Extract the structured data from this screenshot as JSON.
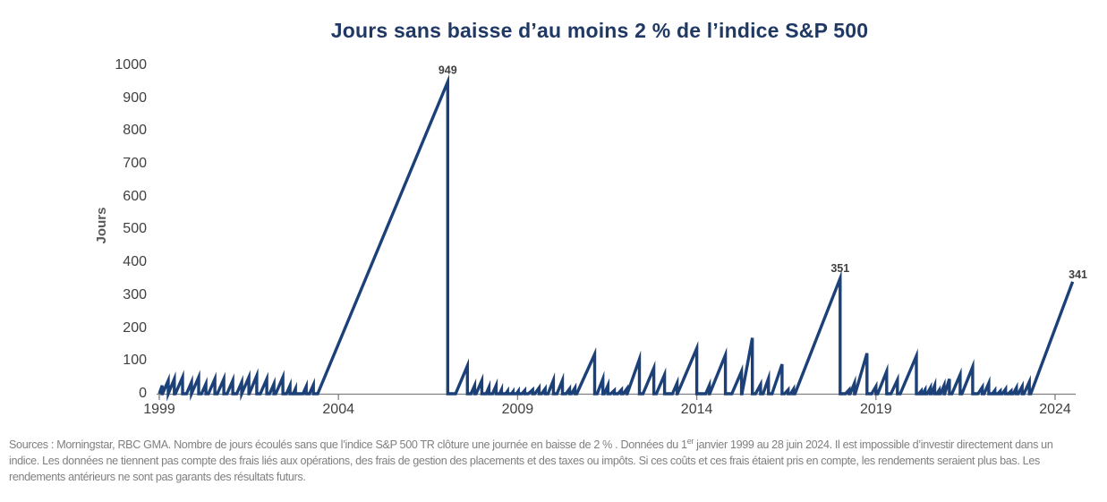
{
  "chart": {
    "title": "Jours sans baisse d’au moins 2 % de l’indice S&P 500"
  },
  "chart_data": {
    "type": "line",
    "title": "Jours sans baisse d’au moins 2 % de l’indice S&P 500",
    "xlabel": "",
    "ylabel": "Jours",
    "ylim": [
      0,
      1000
    ],
    "yticks": [
      0,
      100,
      200,
      300,
      400,
      500,
      600,
      700,
      800,
      900,
      1000
    ],
    "xticks": [
      1999,
      2004,
      2009,
      2014,
      2019,
      2024
    ],
    "x_range": [
      1999,
      2024.6
    ],
    "grid": false,
    "legend": "none",
    "line_color": "#1B4178",
    "axis_color": "#808080",
    "tick_label_color": "#404040",
    "annotation_color": "#404040",
    "title_color": "#1F3864",
    "teeth_format": [
      "streak_start_year",
      "streak_end_year",
      "days_without_2pct_decline_at_peak"
    ],
    "teeth": [
      [
        1999.0,
        1999.08,
        25
      ],
      [
        1999.09,
        1999.25,
        40
      ],
      [
        1999.25,
        1999.42,
        45
      ],
      [
        1999.45,
        1999.65,
        50
      ],
      [
        1999.76,
        1999.9,
        35
      ],
      [
        1999.9,
        2000.1,
        50
      ],
      [
        2000.18,
        2000.3,
        30
      ],
      [
        2000.37,
        2000.55,
        45
      ],
      [
        2000.62,
        2000.8,
        45
      ],
      [
        2000.89,
        2001.05,
        40
      ],
      [
        2001.16,
        2001.3,
        35
      ],
      [
        2001.3,
        2001.5,
        50
      ],
      [
        2001.51,
        2001.72,
        55
      ],
      [
        2001.82,
        2002.0,
        45
      ],
      [
        2002.08,
        2002.2,
        30
      ],
      [
        2002.25,
        2002.45,
        50
      ],
      [
        2002.55,
        2002.65,
        25
      ],
      [
        2002.74,
        2002.8,
        15
      ],
      [
        2003.01,
        2003.1,
        22
      ],
      [
        2003.19,
        2003.3,
        27
      ],
      [
        2003.42,
        2007.05,
        949
      ],
      [
        2007.27,
        2007.6,
        85
      ],
      [
        2007.7,
        2007.8,
        25
      ],
      [
        2007.84,
        2008.0,
        40
      ],
      [
        2008.12,
        2008.2,
        20
      ],
      [
        2008.3,
        2008.4,
        25
      ],
      [
        2008.5,
        2008.55,
        12
      ],
      [
        2008.67,
        2008.72,
        8
      ],
      [
        2008.83,
        2008.87,
        6
      ],
      [
        2008.97,
        2009.02,
        8
      ],
      [
        2009.12,
        2009.2,
        10
      ],
      [
        2009.3,
        2009.42,
        12
      ],
      [
        2009.48,
        2009.6,
        18
      ],
      [
        2009.67,
        2009.77,
        15
      ],
      [
        2009.85,
        2010.0,
        41
      ],
      [
        2010.1,
        2010.25,
        41
      ],
      [
        2010.35,
        2010.45,
        15
      ],
      [
        2010.5,
        2010.6,
        18
      ],
      [
        2010.65,
        2011.15,
        120
      ],
      [
        2011.22,
        2011.38,
        45
      ],
      [
        2011.42,
        2011.52,
        25
      ],
      [
        2011.6,
        2011.7,
        10
      ],
      [
        2011.8,
        2011.9,
        12
      ],
      [
        2011.95,
        2012.05,
        15
      ],
      [
        2012.06,
        2012.4,
        105
      ],
      [
        2012.5,
        2012.8,
        78
      ],
      [
        2012.87,
        2013.1,
        58
      ],
      [
        2013.32,
        2013.45,
        32
      ],
      [
        2013.46,
        2014.0,
        138
      ],
      [
        2014.25,
        2014.35,
        25
      ],
      [
        2014.36,
        2014.8,
        118
      ],
      [
        2014.98,
        2015.25,
        68
      ],
      [
        2015.26,
        2015.55,
        170
      ],
      [
        2015.64,
        2015.78,
        28
      ],
      [
        2015.85,
        2016.0,
        46
      ],
      [
        2016.1,
        2016.38,
        90
      ],
      [
        2016.45,
        2016.55,
        12
      ],
      [
        2016.62,
        2016.7,
        14
      ],
      [
        2016.74,
        2018.0,
        351
      ],
      [
        2018.15,
        2018.25,
        12
      ],
      [
        2018.28,
        2018.4,
        32
      ],
      [
        2018.42,
        2018.75,
        123
      ],
      [
        2018.88,
        2019.0,
        22
      ],
      [
        2019.05,
        2019.3,
        68
      ],
      [
        2019.42,
        2019.6,
        42
      ],
      [
        2019.68,
        2020.13,
        115
      ],
      [
        2020.2,
        2020.26,
        8
      ],
      [
        2020.3,
        2020.37,
        12
      ],
      [
        2020.43,
        2020.52,
        18
      ],
      [
        2020.55,
        2020.64,
        25
      ],
      [
        2020.7,
        2020.76,
        10
      ],
      [
        2020.8,
        2020.9,
        25
      ],
      [
        2020.92,
        2021.05,
        45
      ],
      [
        2021.12,
        2021.35,
        58
      ],
      [
        2021.4,
        2021.7,
        82
      ],
      [
        2021.85,
        2021.97,
        20
      ],
      [
        2022.02,
        2022.15,
        32
      ],
      [
        2022.25,
        2022.32,
        10
      ],
      [
        2022.4,
        2022.47,
        8
      ],
      [
        2022.53,
        2022.62,
        14
      ],
      [
        2022.7,
        2022.77,
        8
      ],
      [
        2022.83,
        2022.92,
        18
      ],
      [
        2022.97,
        2023.08,
        22
      ],
      [
        2023.13,
        2023.28,
        36
      ],
      [
        2023.32,
        2024.49,
        341
      ]
    ],
    "annotations": [
      {
        "year": 2007.05,
        "value": 949,
        "label": "949",
        "offset": [
          0,
          -9
        ]
      },
      {
        "year": 2018.0,
        "value": 351,
        "label": "351",
        "offset": [
          0,
          -7
        ]
      },
      {
        "year": 2024.49,
        "value": 341,
        "label": "341",
        "offset": [
          6,
          -4
        ]
      }
    ]
  },
  "footnote": {
    "line1_pre": "Sources : Morningstar, RBC GMA. Nombre de jours écoulés sans que l’indice S&P 500 TR clôture une journée en baisse de 2 % . Données du 1",
    "line1_sup": "er",
    "line1_post": " janvier 1999 au 28 juin 2024. Il est impossible d’investir directement dans un",
    "line2": "indice. Les données ne tiennent pas compte des frais liés aux opérations, des frais de gestion des placements et des taxes ou impôts. Si ces coûts et ces frais étaient pris en compte, les rendements seraient plus bas. Les",
    "line3": "rendements antérieurs ne sont pas garants des résultats futurs."
  }
}
